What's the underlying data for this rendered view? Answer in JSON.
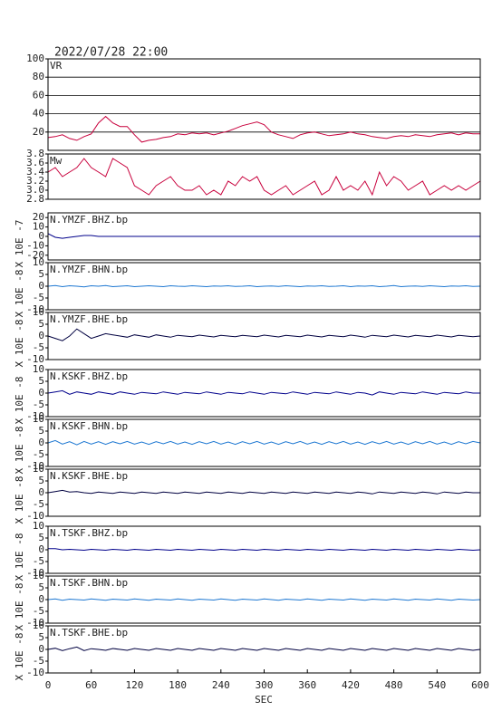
{
  "chart_data": {
    "type": "line",
    "title": "2022/07/28 22:00",
    "xlabel": "SEC",
    "xlim": [
      0,
      600
    ],
    "xticks": [
      0,
      60,
      120,
      180,
      240,
      300,
      360,
      420,
      480,
      540,
      600
    ],
    "x": [
      0,
      10,
      20,
      30,
      40,
      50,
      60,
      70,
      80,
      90,
      100,
      110,
      120,
      130,
      140,
      150,
      160,
      170,
      180,
      190,
      200,
      210,
      220,
      230,
      240,
      250,
      260,
      270,
      280,
      290,
      300,
      310,
      320,
      330,
      340,
      350,
      360,
      370,
      380,
      390,
      400,
      410,
      420,
      430,
      440,
      450,
      460,
      470,
      480,
      490,
      500,
      510,
      520,
      530,
      540,
      550,
      560,
      570,
      580,
      590,
      600
    ],
    "panels": [
      {
        "label": "VR",
        "color": "#c8003c",
        "grid": true,
        "ylim": [
          0,
          100
        ],
        "yticks": [
          20,
          40,
          60,
          80,
          100
        ],
        "values": [
          14,
          15,
          17,
          13,
          11,
          15,
          18,
          30,
          37,
          30,
          26,
          26,
          17,
          9,
          11,
          12,
          14,
          15,
          18,
          17,
          19,
          18,
          19,
          17,
          19,
          21,
          24,
          27,
          29,
          31,
          28,
          20,
          17,
          15,
          13,
          17,
          19,
          20,
          18,
          16,
          17,
          18,
          20,
          18,
          17,
          15,
          14,
          13,
          15,
          16,
          15,
          17,
          16,
          15,
          17,
          18,
          19,
          17,
          19,
          18,
          18
        ]
      },
      {
        "label": "Mw",
        "color": "#c8003c",
        "grid": false,
        "ylim": [
          2.8,
          3.8
        ],
        "yticks": [
          2.8,
          {
            "value": 3,
            "label": "3.0"
          },
          3.2,
          3.4,
          3.6,
          3.8
        ],
        "values": [
          3.4,
          3.5,
          3.3,
          3.4,
          3.5,
          3.7,
          3.5,
          3.4,
          3.3,
          3.7,
          3.6,
          3.5,
          3.1,
          3.0,
          2.9,
          3.1,
          3.2,
          3.3,
          3.1,
          3.0,
          3.0,
          3.1,
          2.9,
          3.0,
          2.9,
          3.2,
          3.1,
          3.3,
          3.2,
          3.3,
          3.0,
          2.9,
          3.0,
          3.1,
          2.9,
          3.0,
          3.1,
          3.2,
          2.9,
          3.0,
          3.3,
          3.0,
          3.1,
          3.0,
          3.2,
          2.9,
          3.4,
          3.1,
          3.3,
          3.2,
          3.0,
          3.1,
          3.2,
          2.9,
          3.0,
          3.1,
          3.0,
          3.1,
          3.0,
          3.1,
          3.2
        ]
      },
      {
        "label": "N.YMZF.BHZ.bp",
        "ylabel": "X 10E -7",
        "color": "#00008b",
        "grid": false,
        "ylim": [
          -25,
          25
        ],
        "yticks": [
          -20,
          -10,
          0,
          10,
          20
        ],
        "values": [
          3,
          -1,
          -2,
          -1,
          0,
          1,
          1,
          0,
          0,
          0,
          0,
          0,
          0,
          0,
          0,
          0,
          0,
          0,
          0,
          0,
          0,
          0,
          0,
          0,
          0,
          0,
          0,
          0,
          0,
          0,
          0,
          0,
          0,
          0,
          0,
          0,
          0,
          0,
          0,
          0,
          0,
          0,
          0,
          0,
          0,
          0,
          0,
          0,
          0,
          0,
          0,
          0,
          0,
          0,
          0,
          0,
          0,
          0,
          0,
          0,
          0
        ]
      },
      {
        "label": "N.YMZF.BHN.bp",
        "ylabel": "X 10E -8",
        "color": "#1e78d2",
        "grid": false,
        "ylim": [
          -10,
          10
        ],
        "yticks": [
          -10,
          -5,
          0,
          5,
          10
        ],
        "values": [
          0,
          0.3,
          -0.2,
          0.2,
          0,
          -0.3,
          0.2,
          0,
          0.3,
          -0.2,
          0,
          0.2,
          -0.2,
          0,
          0.2,
          0,
          -0.2,
          0.2,
          0,
          -0.1,
          0.2,
          0,
          -0.2,
          0.1,
          0,
          0.2,
          -0.1,
          0,
          0.2,
          -0.2,
          0,
          0.1,
          -0.1,
          0.2,
          0,
          -0.2,
          0.1,
          0,
          0.2,
          -0.1,
          0,
          0.2,
          -0.2,
          0.1,
          0,
          0.2,
          -0.2,
          0,
          0.3,
          -0.2,
          0,
          0.1,
          -0.1,
          0.2,
          0,
          -0.2,
          0.1,
          0,
          0.2,
          -0.1,
          0
        ]
      },
      {
        "label": "N.YMZF.BHE.bp",
        "ylabel": "X 10E -8",
        "color": "#000040",
        "grid": false,
        "ylim": [
          -10,
          10
        ],
        "yticks": [
          -10,
          -5,
          0,
          5,
          10
        ],
        "values": [
          0,
          -1,
          -2,
          0,
          3,
          1,
          -1,
          0,
          1,
          0.5,
          0,
          -0.5,
          0.5,
          0,
          -0.5,
          0.5,
          0,
          -0.5,
          0.3,
          0,
          -0.3,
          0.4,
          0,
          -0.4,
          0.3,
          0,
          -0.3,
          0.3,
          0,
          -0.3,
          0.4,
          0,
          -0.4,
          0.3,
          0,
          -0.3,
          0.4,
          0,
          -0.4,
          0.3,
          0,
          -0.3,
          0.4,
          0,
          -0.5,
          0.3,
          0,
          -0.3,
          0.4,
          0,
          -0.4,
          0.3,
          0,
          -0.3,
          0.4,
          0,
          -0.4,
          0.3,
          0,
          -0.3,
          0
        ]
      },
      {
        "label": "N.KSKF.BHZ.bp",
        "ylabel": "X 10E -8",
        "color": "#00008b",
        "grid": false,
        "ylim": [
          -10,
          10
        ],
        "yticks": [
          -10,
          -5,
          0,
          5,
          10
        ],
        "values": [
          0,
          0.5,
          1,
          -0.5,
          0.5,
          0,
          -0.5,
          0.5,
          0,
          -0.5,
          0.5,
          0,
          -0.5,
          0.3,
          0,
          -0.3,
          0.5,
          0,
          -0.5,
          0.3,
          0,
          -0.3,
          0.5,
          0,
          -0.5,
          0.3,
          0,
          -0.3,
          0.5,
          0,
          -0.5,
          0.3,
          0,
          -0.3,
          0.5,
          0,
          -0.5,
          0.3,
          0,
          -0.3,
          0.5,
          0,
          -0.5,
          0.3,
          0,
          -0.8,
          0.5,
          0,
          -0.5,
          0.3,
          0,
          -0.3,
          0.5,
          0,
          -0.5,
          0.3,
          0,
          -0.3,
          0.5,
          0,
          0
        ]
      },
      {
        "label": "N.KSKF.BHN.bp",
        "ylabel": "X 10E -8",
        "color": "#1e78d2",
        "grid": false,
        "ylim": [
          -10,
          10
        ],
        "yticks": [
          -10,
          -5,
          0,
          5,
          10
        ],
        "values": [
          0,
          1,
          -0.5,
          0.5,
          -0.8,
          0.6,
          -0.5,
          0.5,
          -0.6,
          0.5,
          -0.4,
          0.6,
          -0.5,
          0.4,
          -0.6,
          0.5,
          -0.4,
          0.6,
          -0.5,
          0.4,
          -0.6,
          0.5,
          -0.4,
          0.6,
          -0.5,
          0.4,
          -0.6,
          0.5,
          -0.4,
          0.6,
          -0.5,
          0.4,
          -0.6,
          0.5,
          -0.4,
          0.6,
          -0.5,
          0.4,
          -0.6,
          0.5,
          -0.4,
          0.6,
          -0.5,
          0.4,
          -0.6,
          0.5,
          -0.4,
          0.6,
          -0.5,
          0.4,
          -0.6,
          0.5,
          -0.4,
          0.6,
          -0.5,
          0.4,
          -0.6,
          0.5,
          -0.4,
          0.6,
          0
        ]
      },
      {
        "label": "N.KSKF.BHE.bp",
        "ylabel": "X 10E -8",
        "color": "#000040",
        "grid": false,
        "ylim": [
          -10,
          10
        ],
        "yticks": [
          -10,
          -5,
          0,
          5,
          10
        ],
        "values": [
          0,
          0.5,
          1,
          0.3,
          0.5,
          0,
          -0.3,
          0.3,
          0,
          -0.3,
          0.3,
          0,
          -0.3,
          0.3,
          0,
          -0.3,
          0.3,
          0,
          -0.3,
          0.3,
          0,
          -0.3,
          0.3,
          0,
          -0.3,
          0.3,
          0,
          -0.3,
          0.3,
          0,
          -0.3,
          0.3,
          0,
          -0.3,
          0.3,
          0,
          -0.3,
          0.3,
          0,
          -0.3,
          0.3,
          0,
          -0.3,
          0.3,
          0,
          -0.5,
          0.3,
          0,
          -0.3,
          0.3,
          0,
          -0.3,
          0.3,
          0,
          -0.5,
          0.3,
          0,
          -0.3,
          0.3,
          0,
          0
        ]
      },
      {
        "label": "N.TSKF.BHZ.bp",
        "ylabel": "X 10E -8",
        "color": "#00008b",
        "grid": false,
        "ylim": [
          -10,
          10
        ],
        "yticks": [
          -10,
          -5,
          0,
          5,
          10
        ],
        "values": [
          0.5,
          0.5,
          0,
          0.2,
          0,
          -0.2,
          0.2,
          0,
          -0.2,
          0.2,
          0,
          -0.2,
          0.2,
          0,
          -0.2,
          0.2,
          0,
          -0.2,
          0.2,
          0,
          -0.2,
          0.2,
          0,
          -0.2,
          0.2,
          0,
          -0.2,
          0.2,
          0,
          -0.2,
          0.2,
          0,
          -0.2,
          0.2,
          0,
          -0.2,
          0.2,
          0,
          -0.2,
          0.2,
          0,
          -0.2,
          0.2,
          0,
          -0.2,
          0.2,
          0,
          -0.2,
          0.2,
          0,
          -0.2,
          0.2,
          0,
          -0.2,
          0.2,
          0,
          -0.2,
          0.2,
          0,
          -0.2,
          0
        ]
      },
      {
        "label": "N.TSKF.BHN.bp",
        "ylabel": "X 10E -8",
        "color": "#1e78d2",
        "grid": false,
        "ylim": [
          -10,
          10
        ],
        "yticks": [
          -10,
          -5,
          0,
          5,
          10
        ],
        "values": [
          0,
          0.3,
          -0.3,
          0.2,
          0,
          -0.2,
          0.3,
          0,
          -0.3,
          0.2,
          0,
          -0.2,
          0.3,
          0,
          -0.3,
          0.2,
          0,
          -0.2,
          0.3,
          0,
          -0.3,
          0.2,
          0,
          -0.2,
          0.3,
          0,
          -0.3,
          0.2,
          0,
          -0.2,
          0.3,
          0,
          -0.3,
          0.2,
          0,
          -0.2,
          0.3,
          0,
          -0.3,
          0.2,
          0,
          -0.2,
          0.3,
          0,
          -0.3,
          0.2,
          0,
          -0.2,
          0.3,
          0,
          -0.3,
          0.2,
          0,
          -0.2,
          0.3,
          0,
          -0.3,
          0.2,
          0,
          -0.2,
          0
        ]
      },
      {
        "label": "N.TSKF.BHE.bp",
        "ylabel": "X 10E -8",
        "color": "#000040",
        "grid": false,
        "ylim": [
          -10,
          10
        ],
        "yticks": [
          -10,
          -5,
          0,
          5,
          10
        ],
        "values": [
          0,
          0.5,
          -0.5,
          0.3,
          1,
          -0.5,
          0.3,
          0,
          -0.4,
          0.4,
          0,
          -0.4,
          0.4,
          0,
          -0.4,
          0.4,
          0,
          -0.4,
          0.4,
          0,
          -0.4,
          0.4,
          0,
          -0.4,
          0.4,
          0,
          -0.4,
          0.4,
          0,
          -0.4,
          0.4,
          0,
          -0.4,
          0.4,
          0,
          -0.4,
          0.4,
          0,
          -0.4,
          0.4,
          0,
          -0.4,
          0.4,
          0,
          -0.4,
          0.4,
          0,
          -0.4,
          0.4,
          0,
          -0.4,
          0.4,
          0,
          -0.4,
          0.4,
          0,
          -0.4,
          0.4,
          0,
          -0.4,
          0
        ]
      }
    ]
  }
}
